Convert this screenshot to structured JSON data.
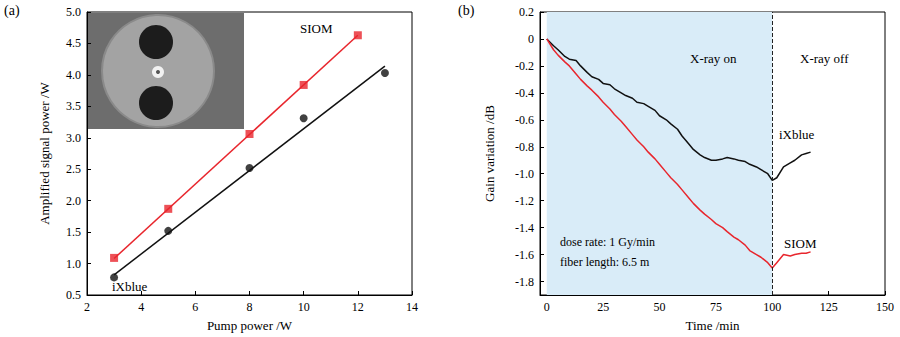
{
  "chart_data": [
    {
      "type": "scatter",
      "title": "(a)",
      "x_label": "Pump power /W",
      "y_label": "Amplified signal power /W",
      "xlim": [
        2,
        14
      ],
      "xticks": [
        2,
        4,
        6,
        8,
        10,
        12,
        14
      ],
      "ylim": [
        0.5,
        5.0
      ],
      "yticks": [
        0.5,
        {
          "value": 1,
          "label": "1.0"
        },
        1.5,
        {
          "value": 2,
          "label": "2.0"
        },
        2.5,
        {
          "value": 3,
          "label": "3.0"
        },
        3.5,
        {
          "value": 4,
          "label": "4.0"
        },
        4.5,
        {
          "value": 5,
          "label": "5.0"
        }
      ],
      "grid": false,
      "series": [
        {
          "name": "SIOM",
          "color": "#e8262d",
          "marker": "square",
          "x": [
            3,
            5,
            8,
            10,
            12
          ],
          "values": [
            1.09,
            1.87,
            3.06,
            3.84,
            4.63
          ],
          "fit": {
            "x": [
              3,
              12
            ],
            "values": [
              1.08,
              4.63
            ]
          }
        },
        {
          "name": "iXblue",
          "color": "#111111",
          "marker": "circle",
          "x": [
            3,
            5,
            8,
            10,
            13
          ],
          "values": [
            0.78,
            1.52,
            2.52,
            3.31,
            4.03
          ],
          "fit": {
            "x": [
              3,
              13
            ],
            "values": [
              0.82,
              4.14
            ]
          }
        }
      ]
    },
    {
      "type": "line",
      "title": "(b)",
      "x_label": "Time /min",
      "y_label": "Gain variation /dB",
      "xlim": [
        -3,
        150
      ],
      "xticks": [
        0,
        25,
        50,
        75,
        100,
        125,
        150
      ],
      "ylim": [
        -1.9,
        0.2
      ],
      "yticks": [
        0.2,
        0,
        -0.2,
        -0.4,
        -0.6,
        -0.8,
        {
          "value": -1,
          "label": "-1.0"
        },
        -1.2,
        -1.4,
        -1.6,
        -1.8
      ],
      "grid": false,
      "exposure": {
        "start": 0,
        "end": 100
      },
      "annotations": [
        "X-ray on",
        "X-ray off",
        "dose rate: 1 Gy/min",
        "fiber length: 6.5 m"
      ],
      "series": [
        {
          "name": "iXblue",
          "color": "#111111",
          "line_style": "solid",
          "x": [
            0,
            3,
            5,
            8,
            10,
            13,
            15,
            18,
            20,
            23,
            25,
            28,
            30,
            33,
            35,
            38,
            40,
            43,
            45,
            48,
            50,
            53,
            55,
            58,
            60,
            63,
            65,
            68,
            70,
            73,
            75,
            78,
            80,
            83,
            85,
            88,
            90,
            93,
            95,
            98,
            100,
            102,
            105,
            108,
            110,
            113,
            115,
            117
          ],
          "values": [
            0,
            -0.05,
            -0.08,
            -0.13,
            -0.15,
            -0.16,
            -0.2,
            -0.25,
            -0.28,
            -0.3,
            -0.33,
            -0.34,
            -0.37,
            -0.4,
            -0.42,
            -0.44,
            -0.47,
            -0.48,
            -0.5,
            -0.53,
            -0.57,
            -0.6,
            -0.63,
            -0.67,
            -0.72,
            -0.78,
            -0.82,
            -0.86,
            -0.88,
            -0.9,
            -0.9,
            -0.89,
            -0.88,
            -0.89,
            -0.9,
            -0.91,
            -0.93,
            -0.95,
            -0.97,
            -1.0,
            -1.05,
            -1.03,
            -0.95,
            -0.92,
            -0.9,
            -0.86,
            -0.85,
            -0.84
          ]
        },
        {
          "name": "SIOM",
          "color": "#e8262d",
          "line_style": "solid",
          "x": [
            0,
            3,
            5,
            8,
            10,
            13,
            15,
            18,
            20,
            23,
            25,
            28,
            30,
            33,
            35,
            38,
            40,
            43,
            45,
            48,
            50,
            53,
            55,
            58,
            60,
            63,
            65,
            68,
            70,
            73,
            75,
            78,
            80,
            83,
            85,
            88,
            90,
            93,
            95,
            98,
            100,
            102,
            105,
            108,
            110,
            113,
            115,
            117
          ],
          "values": [
            0,
            -0.08,
            -0.12,
            -0.17,
            -0.2,
            -0.26,
            -0.3,
            -0.35,
            -0.38,
            -0.43,
            -0.47,
            -0.52,
            -0.56,
            -0.61,
            -0.65,
            -0.71,
            -0.75,
            -0.8,
            -0.84,
            -0.89,
            -0.93,
            -0.99,
            -1.03,
            -1.08,
            -1.12,
            -1.18,
            -1.22,
            -1.27,
            -1.3,
            -1.34,
            -1.37,
            -1.4,
            -1.43,
            -1.47,
            -1.49,
            -1.53,
            -1.57,
            -1.6,
            -1.62,
            -1.66,
            -1.7,
            -1.66,
            -1.6,
            -1.61,
            -1.6,
            -1.59,
            -1.59,
            -1.58
          ]
        }
      ]
    }
  ]
}
